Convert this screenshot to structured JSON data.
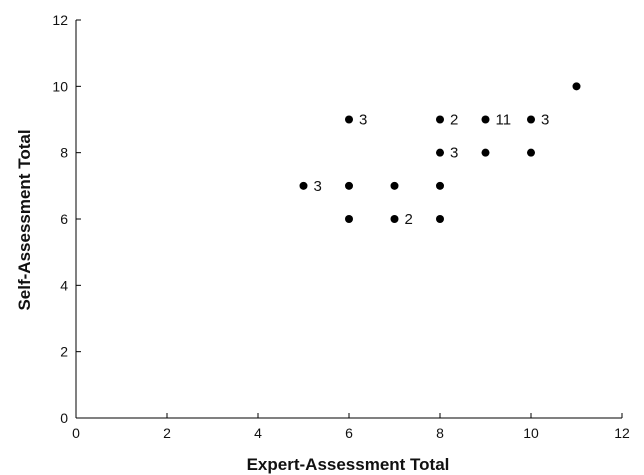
{
  "chart_data": {
    "type": "scatter",
    "xlabel": "Expert-Assessment Total",
    "ylabel": "Self-Assessment Total",
    "xlim": [
      0,
      12
    ],
    "ylim": [
      0,
      12
    ],
    "xticks": [
      0,
      2,
      4,
      6,
      8,
      10,
      12
    ],
    "yticks": [
      0,
      2,
      4,
      6,
      8,
      10,
      12
    ],
    "grid": false,
    "marker_color": "#000000",
    "points": [
      {
        "x": 5,
        "y": 7,
        "label": "3"
      },
      {
        "x": 6,
        "y": 9,
        "label": "3"
      },
      {
        "x": 6,
        "y": 7,
        "label": ""
      },
      {
        "x": 6,
        "y": 6,
        "label": ""
      },
      {
        "x": 7,
        "y": 7,
        "label": ""
      },
      {
        "x": 7,
        "y": 6,
        "label": "2"
      },
      {
        "x": 8,
        "y": 9,
        "label": "2"
      },
      {
        "x": 8,
        "y": 8,
        "label": "3"
      },
      {
        "x": 8,
        "y": 7,
        "label": ""
      },
      {
        "x": 8,
        "y": 6,
        "label": ""
      },
      {
        "x": 9,
        "y": 9,
        "label": "11"
      },
      {
        "x": 9,
        "y": 8,
        "label": ""
      },
      {
        "x": 10,
        "y": 9,
        "label": "3"
      },
      {
        "x": 10,
        "y": 8,
        "label": ""
      },
      {
        "x": 11,
        "y": 10,
        "label": ""
      }
    ]
  }
}
